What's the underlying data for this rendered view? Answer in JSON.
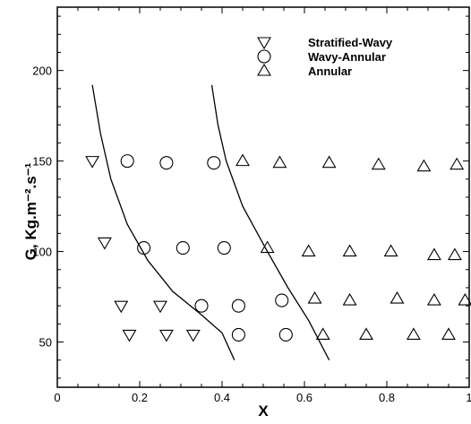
{
  "chart_data": {
    "type": "scatter",
    "title": "",
    "xlabel": "X",
    "ylabel": "G, Kg.m⁻².s⁻¹",
    "xlim": [
      0,
      1
    ],
    "ylim": [
      25,
      235
    ],
    "x_ticks": [
      {
        "value": 0,
        "label": "0"
      },
      {
        "value": 0.2,
        "label": "0.2"
      },
      {
        "value": 0.4,
        "label": "0.4"
      },
      {
        "value": 0.6,
        "label": "0.6"
      },
      {
        "value": 0.8,
        "label": "0.8"
      },
      {
        "value": 1.0,
        "label": "1"
      }
    ],
    "y_ticks": [
      {
        "value": 50,
        "label": "50"
      },
      {
        "value": 100,
        "label": "100"
      },
      {
        "value": 150,
        "label": "150"
      },
      {
        "value": 200,
        "label": "200"
      }
    ],
    "grid": false,
    "legend_position": "top-right",
    "series": [
      {
        "name": "Stratified-Wavy",
        "marker": "triangle-down",
        "points": [
          {
            "x": 0.085,
            "y": 150
          },
          {
            "x": 0.115,
            "y": 105
          },
          {
            "x": 0.155,
            "y": 70
          },
          {
            "x": 0.25,
            "y": 70
          },
          {
            "x": 0.175,
            "y": 54
          },
          {
            "x": 0.265,
            "y": 54
          },
          {
            "x": 0.33,
            "y": 54
          }
        ]
      },
      {
        "name": "Wavy-Annular",
        "marker": "circle",
        "points": [
          {
            "x": 0.17,
            "y": 150
          },
          {
            "x": 0.265,
            "y": 149
          },
          {
            "x": 0.38,
            "y": 149
          },
          {
            "x": 0.21,
            "y": 102
          },
          {
            "x": 0.305,
            "y": 102
          },
          {
            "x": 0.405,
            "y": 102
          },
          {
            "x": 0.35,
            "y": 70
          },
          {
            "x": 0.44,
            "y": 70
          },
          {
            "x": 0.545,
            "y": 73
          },
          {
            "x": 0.44,
            "y": 54
          },
          {
            "x": 0.555,
            "y": 54
          }
        ]
      },
      {
        "name": "Annular",
        "marker": "triangle-up",
        "points": [
          {
            "x": 0.45,
            "y": 150
          },
          {
            "x": 0.54,
            "y": 149
          },
          {
            "x": 0.66,
            "y": 149
          },
          {
            "x": 0.78,
            "y": 148
          },
          {
            "x": 0.89,
            "y": 147
          },
          {
            "x": 0.97,
            "y": 148
          },
          {
            "x": 0.51,
            "y": 102
          },
          {
            "x": 0.61,
            "y": 100
          },
          {
            "x": 0.71,
            "y": 100
          },
          {
            "x": 0.81,
            "y": 100
          },
          {
            "x": 0.915,
            "y": 98
          },
          {
            "x": 0.965,
            "y": 98
          },
          {
            "x": 0.625,
            "y": 74
          },
          {
            "x": 0.71,
            "y": 73
          },
          {
            "x": 0.825,
            "y": 74
          },
          {
            "x": 0.915,
            "y": 73
          },
          {
            "x": 0.99,
            "y": 73
          },
          {
            "x": 0.645,
            "y": 54
          },
          {
            "x": 0.75,
            "y": 54
          },
          {
            "x": 0.865,
            "y": 54
          },
          {
            "x": 0.95,
            "y": 54
          }
        ]
      }
    ],
    "transition_lines": [
      {
        "points": [
          {
            "x": 0.085,
            "y": 192
          },
          {
            "x": 0.105,
            "y": 165
          },
          {
            "x": 0.13,
            "y": 140
          },
          {
            "x": 0.17,
            "y": 115
          },
          {
            "x": 0.22,
            "y": 95
          },
          {
            "x": 0.28,
            "y": 78
          },
          {
            "x": 0.35,
            "y": 65
          },
          {
            "x": 0.4,
            "y": 55
          },
          {
            "x": 0.43,
            "y": 40
          }
        ]
      },
      {
        "points": [
          {
            "x": 0.375,
            "y": 192
          },
          {
            "x": 0.39,
            "y": 170
          },
          {
            "x": 0.41,
            "y": 150
          },
          {
            "x": 0.45,
            "y": 125
          },
          {
            "x": 0.51,
            "y": 100
          },
          {
            "x": 0.56,
            "y": 80
          },
          {
            "x": 0.61,
            "y": 62
          },
          {
            "x": 0.66,
            "y": 40
          }
        ]
      }
    ]
  }
}
